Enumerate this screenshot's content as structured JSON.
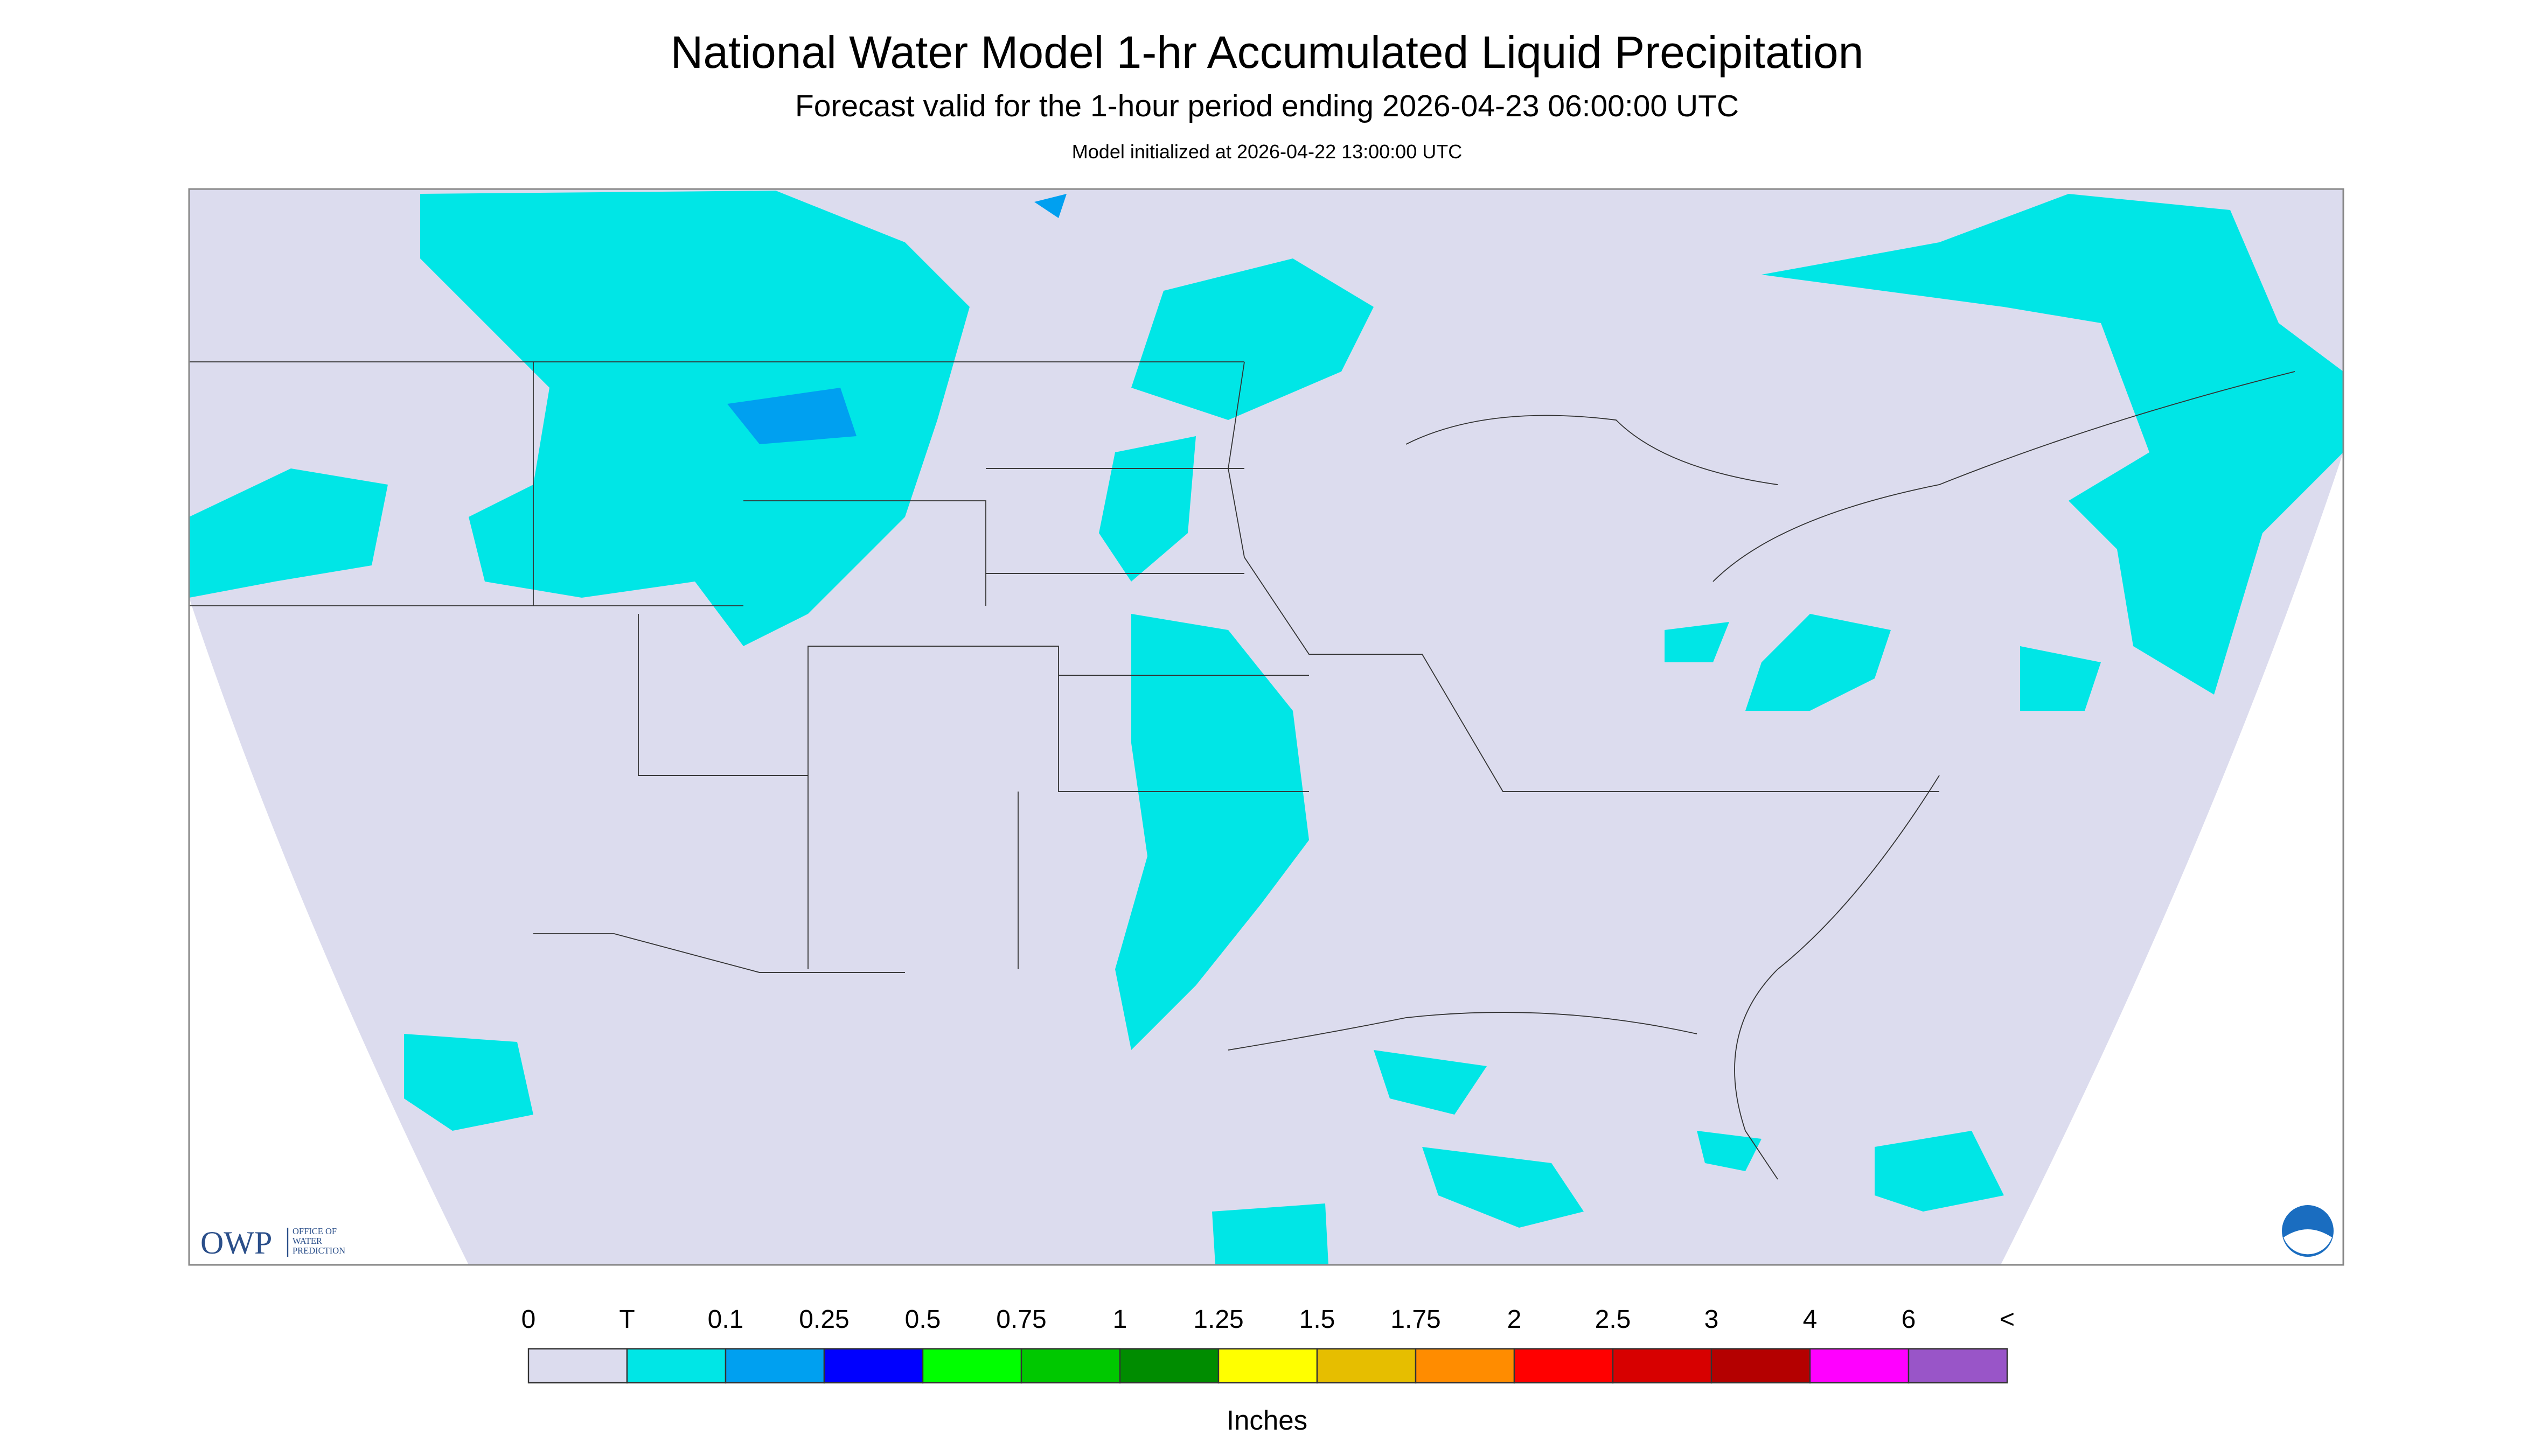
{
  "header": {
    "title": "National Water Model 1-hr Accumulated Liquid Precipitation",
    "subtitle": "Forecast valid for the 1-hour period ending 2026-04-23 06:00:00 UTC",
    "init": "Model initialized at 2026-04-22 13:00:00 UTC"
  },
  "logo": {
    "short": "OWP",
    "line1": "OFFICE OF",
    "line2": "WATER",
    "line3": "PREDICTION"
  },
  "legend": {
    "labels": [
      "0",
      "T",
      "0.1",
      "0.25",
      "0.5",
      "0.75",
      "1",
      "1.25",
      "1.5",
      "1.75",
      "2",
      "2.5",
      "3",
      "4",
      "6",
      "<"
    ],
    "colors": [
      "#dcdcee",
      "#00e6e6",
      "#00a0f0",
      "#0000ff",
      "#00ff00",
      "#00c800",
      "#008c00",
      "#ffff00",
      "#e6be00",
      "#ff8c00",
      "#ff0000",
      "#d70000",
      "#b40000",
      "#ff00ff",
      "#9955c8"
    ],
    "unit": "Inches"
  }
}
